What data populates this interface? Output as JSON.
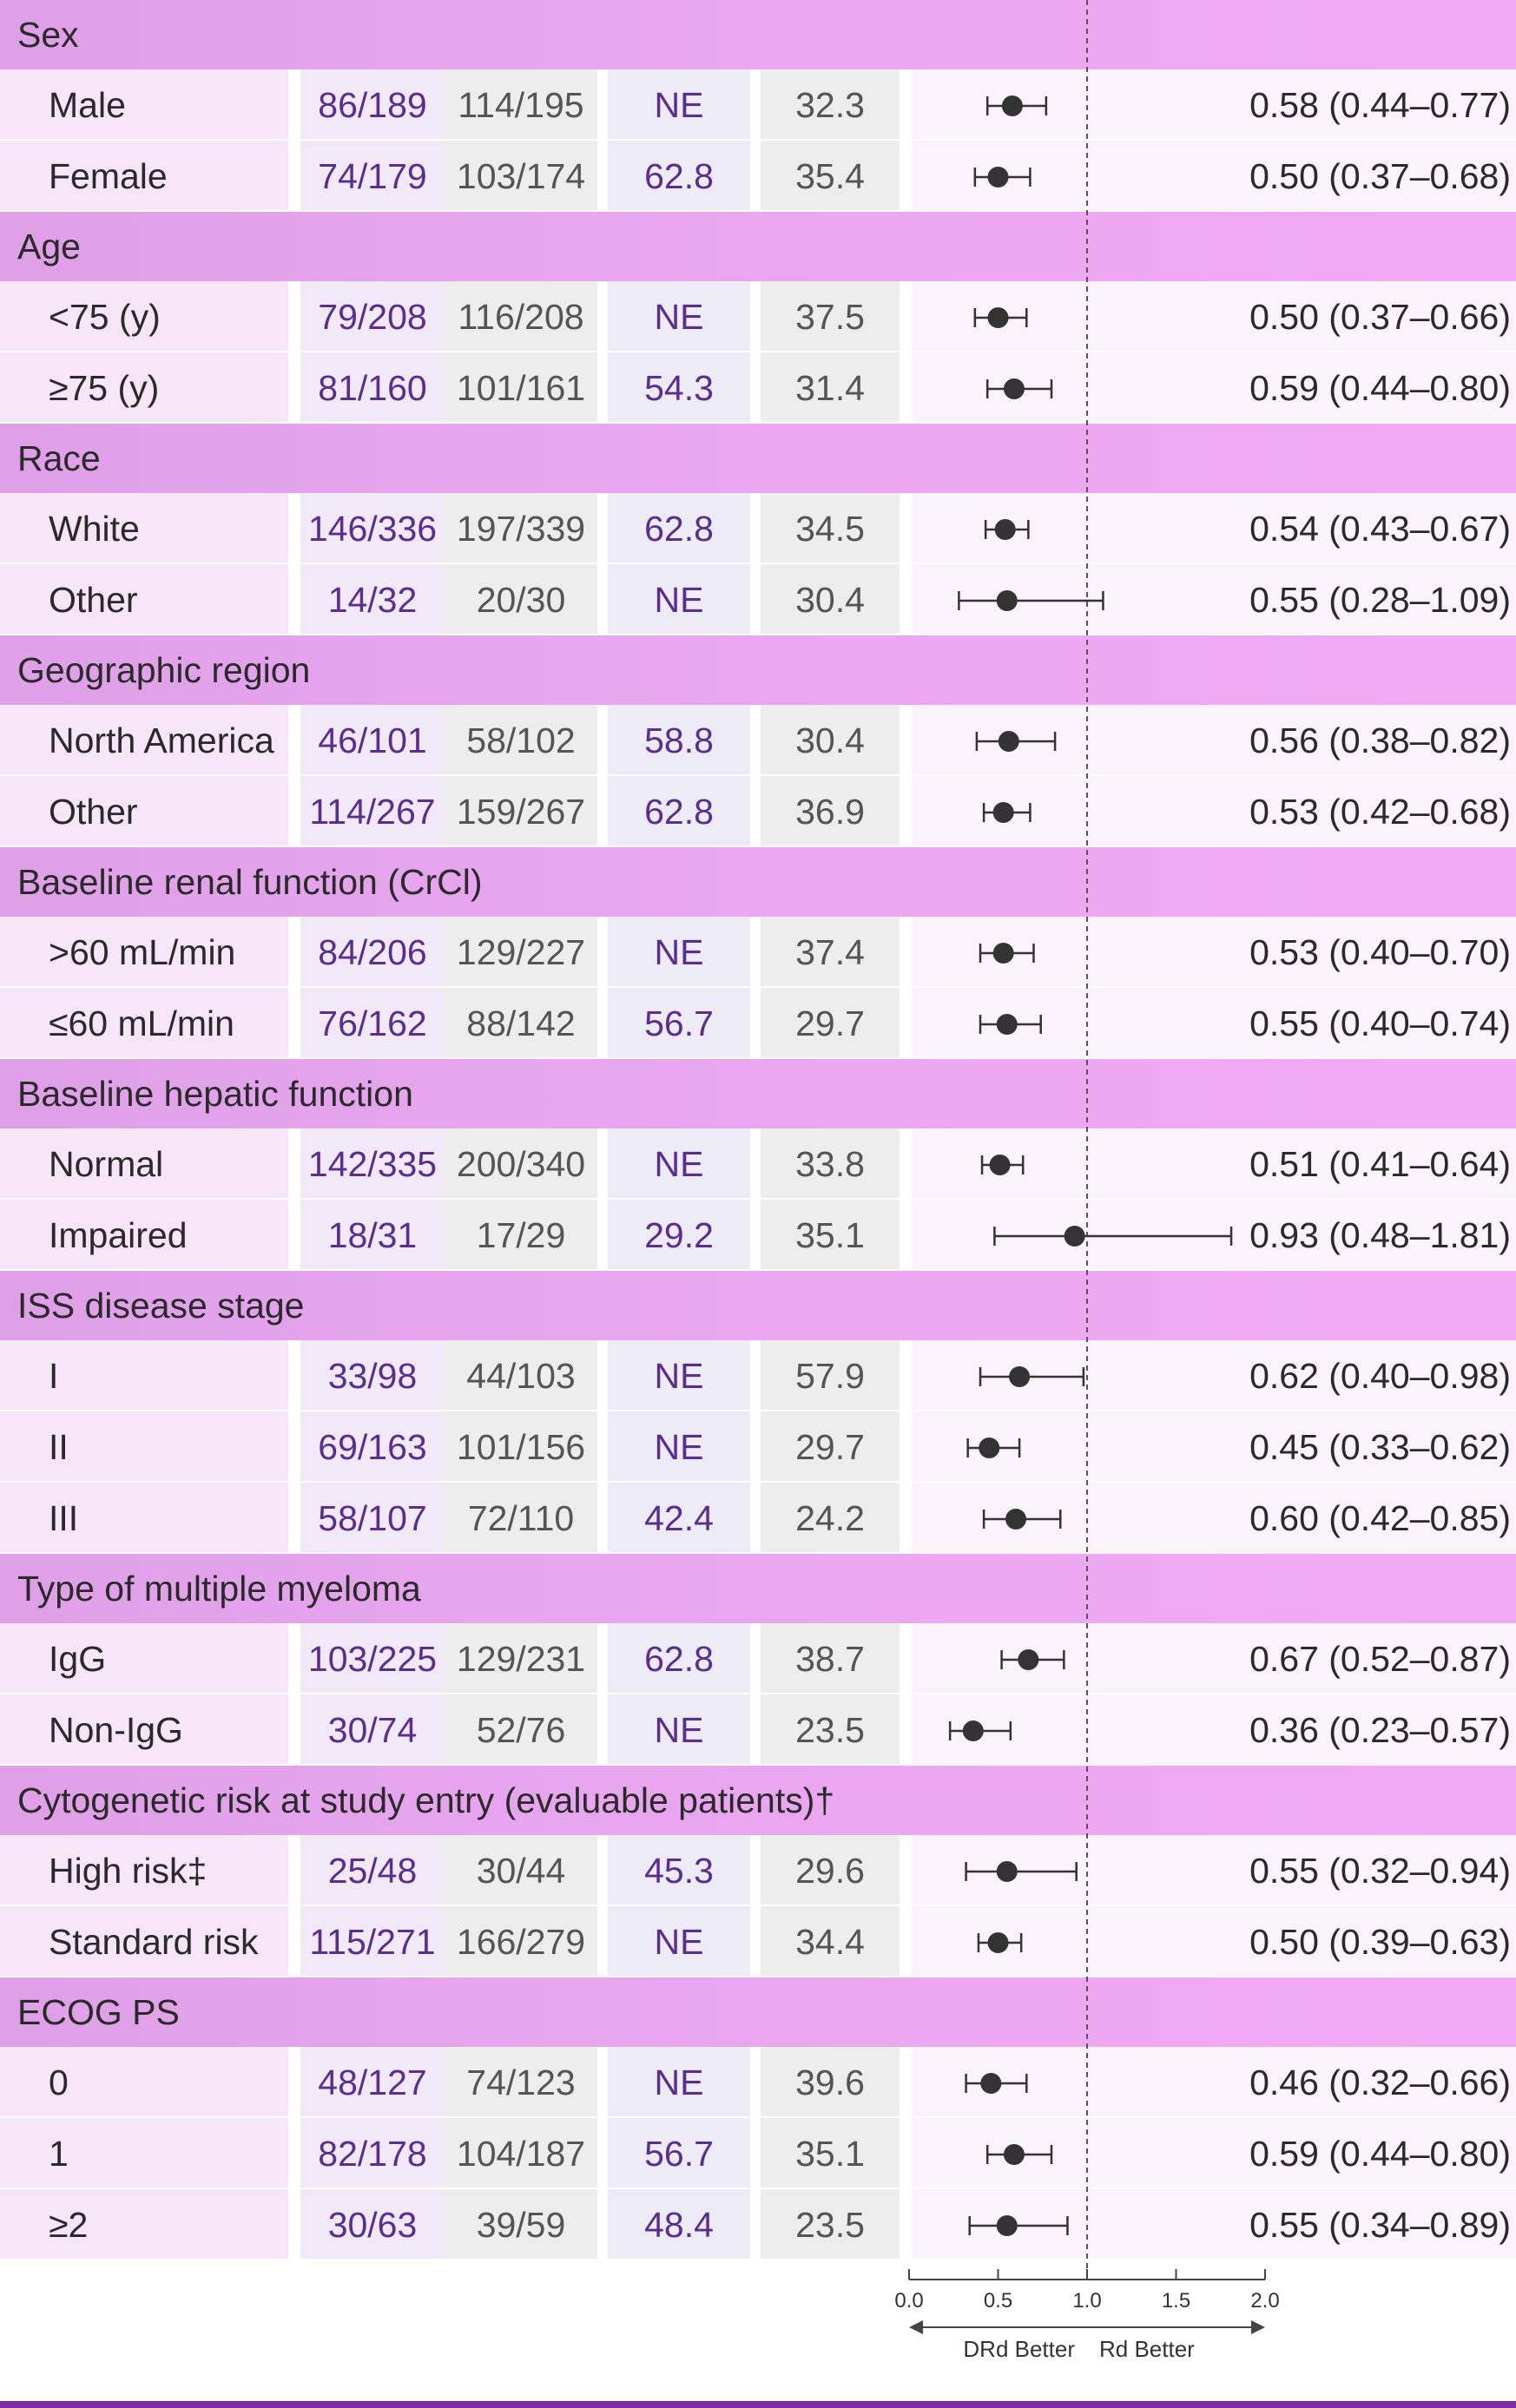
{
  "chart_data": {
    "type": "forest",
    "reference_line": 1.0,
    "axis": {
      "xlim": [
        0.0,
        2.0
      ],
      "ticks": [
        "0.0",
        "0.5",
        "1.0",
        "1.5",
        "2.0"
      ],
      "tick_values": [
        0.0,
        0.5,
        1.0,
        1.5,
        2.0
      ],
      "left_label": "DRd Better",
      "right_label": "Rd Better"
    },
    "groups": [
      {
        "name": "Sex",
        "rows": [
          {
            "label": "Male",
            "drd_events": "86/189",
            "rd_events": "114/195",
            "drd_median": "NE",
            "rd_median": "32.3",
            "hr": 0.58,
            "lo": 0.44,
            "hi": 0.77,
            "hr_text": "0.58 (0.44–0.77)"
          },
          {
            "label": "Female",
            "drd_events": "74/179",
            "rd_events": "103/174",
            "drd_median": "62.8",
            "rd_median": "35.4",
            "hr": 0.5,
            "lo": 0.37,
            "hi": 0.68,
            "hr_text": "0.50 (0.37–0.68)"
          }
        ]
      },
      {
        "name": "Age",
        "rows": [
          {
            "label": "<75 (y)",
            "drd_events": "79/208",
            "rd_events": "116/208",
            "drd_median": "NE",
            "rd_median": "37.5",
            "hr": 0.5,
            "lo": 0.37,
            "hi": 0.66,
            "hr_text": "0.50 (0.37–0.66)"
          },
          {
            "label": "≥75 (y)",
            "drd_events": "81/160",
            "rd_events": "101/161",
            "drd_median": "54.3",
            "rd_median": "31.4",
            "hr": 0.59,
            "lo": 0.44,
            "hi": 0.8,
            "hr_text": "0.59 (0.44–0.80)"
          }
        ]
      },
      {
        "name": "Race",
        "rows": [
          {
            "label": "White",
            "drd_events": "146/336",
            "rd_events": "197/339",
            "drd_median": "62.8",
            "rd_median": "34.5",
            "hr": 0.54,
            "lo": 0.43,
            "hi": 0.67,
            "hr_text": "0.54 (0.43–0.67)"
          },
          {
            "label": "Other",
            "drd_events": "14/32",
            "rd_events": "20/30",
            "drd_median": "NE",
            "rd_median": "30.4",
            "hr": 0.55,
            "lo": 0.28,
            "hi": 1.09,
            "hr_text": "0.55 (0.28–1.09)"
          }
        ]
      },
      {
        "name": "Geographic region",
        "rows": [
          {
            "label": "North America",
            "drd_events": "46/101",
            "rd_events": "58/102",
            "drd_median": "58.8",
            "rd_median": "30.4",
            "hr": 0.56,
            "lo": 0.38,
            "hi": 0.82,
            "hr_text": "0.56 (0.38–0.82)"
          },
          {
            "label": "Other",
            "drd_events": "114/267",
            "rd_events": "159/267",
            "drd_median": "62.8",
            "rd_median": "36.9",
            "hr": 0.53,
            "lo": 0.42,
            "hi": 0.68,
            "hr_text": "0.53 (0.42–0.68)"
          }
        ]
      },
      {
        "name": "Baseline renal function (CrCl)",
        "rows": [
          {
            "label": ">60 mL/min",
            "drd_events": "84/206",
            "rd_events": "129/227",
            "drd_median": "NE",
            "rd_median": "37.4",
            "hr": 0.53,
            "lo": 0.4,
            "hi": 0.7,
            "hr_text": "0.53 (0.40–0.70)"
          },
          {
            "label": "≤60 mL/min",
            "drd_events": "76/162",
            "rd_events": "88/142",
            "drd_median": "56.7",
            "rd_median": "29.7",
            "hr": 0.55,
            "lo": 0.4,
            "hi": 0.74,
            "hr_text": "0.55 (0.40–0.74)"
          }
        ]
      },
      {
        "name": "Baseline hepatic function",
        "rows": [
          {
            "label": "Normal",
            "drd_events": "142/335",
            "rd_events": "200/340",
            "drd_median": "NE",
            "rd_median": "33.8",
            "hr": 0.51,
            "lo": 0.41,
            "hi": 0.64,
            "hr_text": "0.51 (0.41–0.64)"
          },
          {
            "label": "Impaired",
            "drd_events": "18/31",
            "rd_events": "17/29",
            "drd_median": "29.2",
            "rd_median": "35.1",
            "hr": 0.93,
            "lo": 0.48,
            "hi": 1.81,
            "hr_text": "0.93 (0.48–1.81)"
          }
        ]
      },
      {
        "name": "ISS disease stage",
        "rows": [
          {
            "label": "I",
            "drd_events": "33/98",
            "rd_events": "44/103",
            "drd_median": "NE",
            "rd_median": "57.9",
            "hr": 0.62,
            "lo": 0.4,
            "hi": 0.98,
            "hr_text": "0.62 (0.40–0.98)"
          },
          {
            "label": "II",
            "drd_events": "69/163",
            "rd_events": "101/156",
            "drd_median": "NE",
            "rd_median": "29.7",
            "hr": 0.45,
            "lo": 0.33,
            "hi": 0.62,
            "hr_text": "0.45 (0.33–0.62)"
          },
          {
            "label": "III",
            "drd_events": "58/107",
            "rd_events": "72/110",
            "drd_median": "42.4",
            "rd_median": "24.2",
            "hr": 0.6,
            "lo": 0.42,
            "hi": 0.85,
            "hr_text": "0.60 (0.42–0.85)"
          }
        ]
      },
      {
        "name": "Type of multiple myeloma",
        "rows": [
          {
            "label": "IgG",
            "drd_events": "103/225",
            "rd_events": "129/231",
            "drd_median": "62.8",
            "rd_median": "38.7",
            "hr": 0.67,
            "lo": 0.52,
            "hi": 0.87,
            "hr_text": "0.67 (0.52–0.87)"
          },
          {
            "label": "Non-IgG",
            "drd_events": "30/74",
            "rd_events": "52/76",
            "drd_median": "NE",
            "rd_median": "23.5",
            "hr": 0.36,
            "lo": 0.23,
            "hi": 0.57,
            "hr_text": "0.36 (0.23–0.57)"
          }
        ]
      },
      {
        "name": "Cytogenetic risk at study entry (evaluable patients)†",
        "rows": [
          {
            "label": "High risk‡",
            "drd_events": "25/48",
            "rd_events": "30/44",
            "drd_median": "45.3",
            "rd_median": "29.6",
            "hr": 0.55,
            "lo": 0.32,
            "hi": 0.94,
            "hr_text": "0.55 (0.32–0.94)"
          },
          {
            "label": "Standard risk",
            "drd_events": "115/271",
            "rd_events": "166/279",
            "drd_median": "NE",
            "rd_median": "34.4",
            "hr": 0.5,
            "lo": 0.39,
            "hi": 0.63,
            "hr_text": "0.50 (0.39–0.63)"
          }
        ]
      },
      {
        "name": "ECOG PS",
        "rows": [
          {
            "label": "0",
            "drd_events": "48/127",
            "rd_events": "74/123",
            "drd_median": "NE",
            "rd_median": "39.6",
            "hr": 0.46,
            "lo": 0.32,
            "hi": 0.66,
            "hr_text": "0.46 (0.32–0.66)"
          },
          {
            "label": "1",
            "drd_events": "82/178",
            "rd_events": "104/187",
            "drd_median": "56.7",
            "rd_median": "35.1",
            "hr": 0.59,
            "lo": 0.44,
            "hi": 0.8,
            "hr_text": "0.59 (0.44–0.80)"
          },
          {
            "label": "≥2",
            "drd_events": "30/63",
            "rd_events": "39/59",
            "drd_median": "48.4",
            "rd_median": "23.5",
            "hr": 0.55,
            "lo": 0.34,
            "hi": 0.89,
            "hr_text": "0.55 (0.34–0.89)"
          }
        ]
      }
    ]
  },
  "colors": {
    "accent_purple": "#5a2d8e",
    "group_band": "#e8a6ef",
    "marker": "#333333",
    "bottom_rule": "#7b2d9e"
  }
}
